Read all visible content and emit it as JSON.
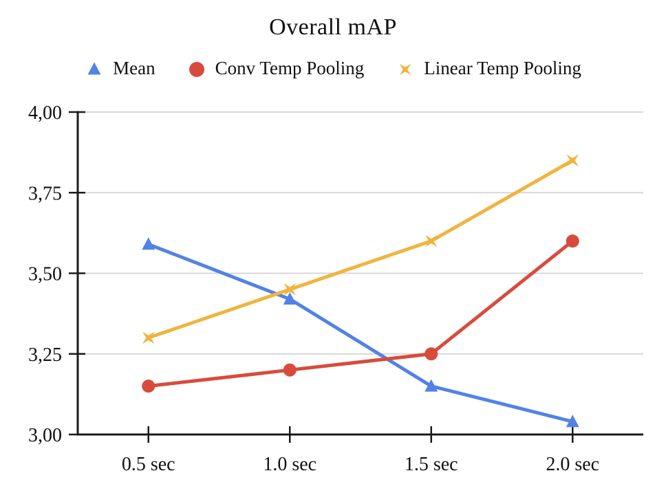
{
  "page": {
    "background_color": "#ffffff",
    "text_color": "#111111"
  },
  "chart_data": {
    "type": "line",
    "title": "Overall mAP",
    "legend_position": "top",
    "grid": true,
    "gridline_color": "#d7d7d7",
    "axis_color": "#1a1a1a",
    "categories": [
      "0.5 sec",
      "1.0 sec",
      "1.5 sec",
      "2.0 sec"
    ],
    "series": [
      {
        "name": "Mean",
        "marker": "triangle",
        "color": "#5282e8",
        "values": [
          3.59,
          3.42,
          3.15,
          3.04
        ]
      },
      {
        "name": "Conv Temp Pooling",
        "marker": "circle",
        "color": "#d84b3c",
        "values": [
          3.15,
          3.2,
          3.25,
          3.6
        ]
      },
      {
        "name": "Linear Temp Pooling",
        "marker": "x-star",
        "color": "#f0b43e",
        "values": [
          3.3,
          3.45,
          3.6,
          3.85
        ]
      }
    ],
    "y_axis": {
      "min": 3.0,
      "max": 4.0,
      "ticks": [
        {
          "value": 4.0,
          "label": "4,00"
        },
        {
          "value": 3.75,
          "label": "3,75"
        },
        {
          "value": 3.5,
          "label": "3,50"
        },
        {
          "value": 3.25,
          "label": "3,25"
        },
        {
          "value": 3.0,
          "label": "3,00"
        }
      ]
    },
    "x_axis": {
      "label_suffix": "sec"
    }
  }
}
